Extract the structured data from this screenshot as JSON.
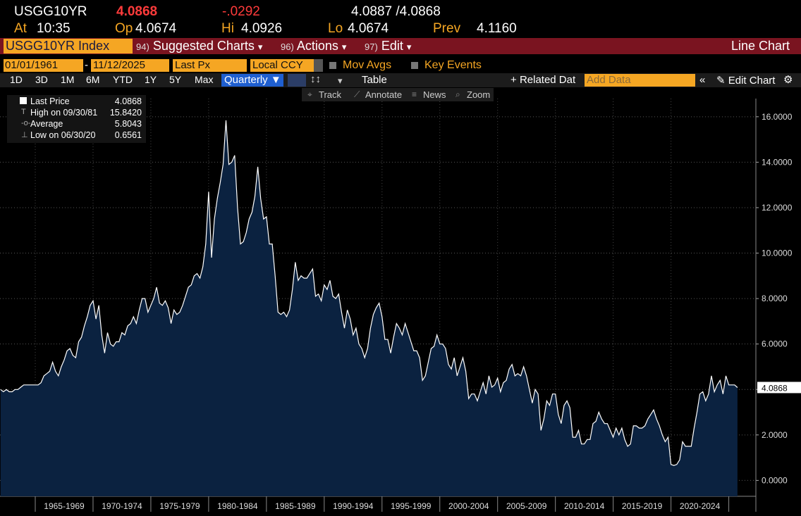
{
  "header": {
    "ticker": "USGG10YR",
    "last": "4.0868",
    "change": "-.0292",
    "bid_ask": "4.0887 /4.0868",
    "time_label": "At",
    "time": "10:35",
    "open_label": "Op",
    "open": "4.0674",
    "high_label": "Hi",
    "high": "4.0926",
    "low_label": "Lo",
    "low": "4.0674",
    "prev_label": "Prev",
    "prev": "4.1160"
  },
  "menu": {
    "security": "USGG10YR Index",
    "items": [
      {
        "num": "94)",
        "label": "Suggested Charts"
      },
      {
        "num": "96)",
        "label": "Actions"
      },
      {
        "num": "97)",
        "label": "Edit"
      }
    ],
    "chart_kind": "Line Chart"
  },
  "controls": {
    "start_date": "01/01/1961",
    "end_date": "11/12/2025",
    "field": "Last Px",
    "currency": "Local CCY",
    "checks": [
      "Mov Avgs",
      "Key Events"
    ],
    "ranges": [
      "1D",
      "3D",
      "1M",
      "6M",
      "YTD",
      "1Y",
      "5Y",
      "Max"
    ],
    "period": "Quarterly",
    "table": "Table",
    "related": "Related Dat",
    "add_data": "Add Data",
    "edit": "Edit Chart",
    "tools": [
      "Track",
      "Annotate",
      "News",
      "Zoom"
    ]
  },
  "legend": [
    {
      "label": "Last Price",
      "value": "4.0868"
    },
    {
      "label": "High on 09/30/81",
      "value": "15.8420"
    },
    {
      "label": "Average",
      "value": "5.8043"
    },
    {
      "label": "Low on 06/30/20",
      "value": "0.6561"
    }
  ],
  "chart_data": {
    "type": "area",
    "x": [
      1962,
      1962.25,
      1962.5,
      1962.75,
      1963,
      1963.25,
      1963.5,
      1963.75,
      1964,
      1964.25,
      1964.5,
      1964.75,
      1965,
      1965.25,
      1965.5,
      1965.75,
      1966,
      1966.25,
      1966.5,
      1966.75,
      1967,
      1967.25,
      1967.5,
      1967.75,
      1968,
      1968.25,
      1968.5,
      1968.75,
      1969,
      1969.25,
      1969.5,
      1969.75,
      1970,
      1970.25,
      1970.5,
      1970.75,
      1971,
      1971.25,
      1971.5,
      1971.75,
      1972,
      1972.25,
      1972.5,
      1972.75,
      1973,
      1973.25,
      1973.5,
      1973.75,
      1974,
      1974.25,
      1974.5,
      1974.75,
      1975,
      1975.25,
      1975.5,
      1975.75,
      1976,
      1976.25,
      1976.5,
      1976.75,
      1977,
      1977.25,
      1977.5,
      1977.75,
      1978,
      1978.25,
      1978.5,
      1978.75,
      1979,
      1979.25,
      1979.5,
      1979.75,
      1980,
      1980.25,
      1980.5,
      1980.75,
      1981,
      1981.25,
      1981.5,
      1981.75,
      1982,
      1982.25,
      1982.5,
      1982.75,
      1983,
      1983.25,
      1983.5,
      1983.75,
      1984,
      1984.25,
      1984.5,
      1984.75,
      1985,
      1985.25,
      1985.5,
      1985.75,
      1986,
      1986.25,
      1986.5,
      1986.75,
      1987,
      1987.25,
      1987.5,
      1987.75,
      1988,
      1988.25,
      1988.5,
      1988.75,
      1989,
      1989.25,
      1989.5,
      1989.75,
      1990,
      1990.25,
      1990.5,
      1990.75,
      1991,
      1991.25,
      1991.5,
      1991.75,
      1992,
      1992.25,
      1992.5,
      1992.75,
      1993,
      1993.25,
      1993.5,
      1993.75,
      1994,
      1994.25,
      1994.5,
      1994.75,
      1995,
      1995.25,
      1995.5,
      1995.75,
      1996,
      1996.25,
      1996.5,
      1996.75,
      1997,
      1997.25,
      1997.5,
      1997.75,
      1998,
      1998.25,
      1998.5,
      1998.75,
      1999,
      1999.25,
      1999.5,
      1999.75,
      2000,
      2000.25,
      2000.5,
      2000.75,
      2001,
      2001.25,
      2001.5,
      2001.75,
      2002,
      2002.25,
      2002.5,
      2002.75,
      2003,
      2003.25,
      2003.5,
      2003.75,
      2004,
      2004.25,
      2004.5,
      2004.75,
      2005,
      2005.25,
      2005.5,
      2005.75,
      2006,
      2006.25,
      2006.5,
      2006.75,
      2007,
      2007.25,
      2007.5,
      2007.75,
      2008,
      2008.25,
      2008.5,
      2008.75,
      2009,
      2009.25,
      2009.5,
      2009.75,
      2010,
      2010.25,
      2010.5,
      2010.75,
      2011,
      2011.25,
      2011.5,
      2011.75,
      2012,
      2012.25,
      2012.5,
      2012.75,
      2013,
      2013.25,
      2013.5,
      2013.75,
      2014,
      2014.25,
      2014.5,
      2014.75,
      2015,
      2015.25,
      2015.5,
      2015.75,
      2016,
      2016.25,
      2016.5,
      2016.75,
      2017,
      2017.25,
      2017.5,
      2017.75,
      2018,
      2018.25,
      2018.5,
      2018.75,
      2019,
      2019.25,
      2019.5,
      2019.75,
      2020,
      2020.25,
      2020.5,
      2020.75,
      2021,
      2021.25,
      2021.5,
      2021.75,
      2022,
      2022.25,
      2022.5,
      2022.75,
      2023,
      2023.25,
      2023.5,
      2023.75,
      2024,
      2024.25,
      2024.5,
      2024.75,
      2025,
      2025.25,
      2025.5,
      2025.75
    ],
    "series": [
      {
        "name": "Last Price",
        "color": "#ffffff",
        "fill": "#0b2240",
        "values": [
          4.0,
          3.9,
          4.0,
          3.9,
          3.9,
          4.0,
          4.0,
          4.1,
          4.2,
          4.2,
          4.2,
          4.2,
          4.2,
          4.2,
          4.3,
          4.6,
          4.7,
          4.8,
          5.2,
          4.8,
          4.6,
          5.0,
          5.3,
          5.7,
          5.8,
          5.5,
          5.4,
          6.1,
          6.3,
          6.8,
          7.2,
          7.7,
          7.9,
          7.1,
          7.7,
          6.4,
          5.6,
          6.5,
          6.0,
          5.9,
          6.1,
          6.1,
          6.5,
          6.4,
          6.8,
          6.9,
          7.2,
          6.9,
          7.5,
          8.0,
          8.0,
          7.4,
          7.7,
          8.0,
          8.5,
          7.8,
          7.7,
          7.9,
          7.6,
          6.9,
          7.5,
          7.3,
          7.4,
          7.7,
          8.1,
          8.5,
          8.6,
          9.0,
          9.1,
          8.9,
          9.4,
          10.4,
          12.7,
          9.8,
          11.5,
          12.4,
          13.1,
          13.9,
          15.842,
          13.9,
          14.0,
          14.3,
          12.0,
          10.4,
          10.5,
          10.9,
          11.5,
          11.8,
          12.5,
          13.8,
          12.4,
          11.5,
          11.6,
          10.4,
          10.4,
          9.0,
          7.4,
          7.3,
          7.4,
          7.2,
          7.5,
          8.4,
          9.6,
          8.8,
          9.0,
          8.9,
          8.9,
          9.1,
          9.3,
          8.1,
          8.2,
          7.9,
          8.6,
          8.4,
          8.8,
          8.1,
          8.0,
          8.2,
          7.4,
          6.7,
          7.5,
          7.1,
          6.4,
          6.7,
          6.0,
          5.8,
          5.4,
          5.8,
          6.7,
          7.3,
          7.6,
          7.8,
          7.2,
          6.2,
          6.2,
          5.6,
          6.3,
          6.9,
          6.7,
          6.4,
          6.9,
          6.5,
          6.1,
          5.7,
          5.7,
          5.4,
          4.4,
          4.6,
          5.2,
          5.8,
          5.9,
          6.4,
          6.0,
          6.0,
          5.8,
          5.1,
          4.9,
          5.4,
          4.6,
          5.0,
          5.4,
          4.8,
          3.6,
          3.8,
          3.8,
          3.5,
          3.9,
          4.3,
          3.8,
          4.6,
          4.1,
          4.2,
          4.5,
          3.9,
          4.3,
          4.4,
          4.9,
          5.1,
          4.6,
          4.7,
          4.6,
          5.0,
          4.6,
          4.0,
          3.4,
          4.0,
          3.8,
          2.2,
          2.7,
          3.5,
          3.3,
          3.8,
          3.8,
          2.9,
          2.5,
          3.3,
          3.5,
          3.2,
          1.9,
          1.9,
          2.2,
          1.6,
          1.6,
          1.8,
          1.8,
          2.5,
          2.6,
          3.0,
          2.7,
          2.5,
          2.5,
          2.2,
          1.9,
          2.3,
          2.0,
          2.3,
          1.8,
          1.5,
          1.6,
          2.4,
          2.4,
          2.3,
          2.3,
          2.4,
          2.7,
          2.9,
          3.1,
          2.7,
          2.4,
          2.0,
          1.7,
          1.9,
          0.7,
          0.6561,
          0.7,
          0.9,
          1.7,
          1.5,
          1.5,
          1.5,
          2.3,
          3.0,
          3.8,
          3.9,
          3.5,
          3.8,
          4.6,
          3.9,
          4.2,
          4.4,
          3.8,
          4.6,
          4.2,
          4.2,
          4.2,
          4.0868
        ]
      }
    ],
    "xlim": [
      1961.95,
      2027.1
    ],
    "ylim": [
      -0.7,
      16.8
    ],
    "yticks": [
      {
        "value": 0,
        "label": "0.0000"
      },
      {
        "value": 2,
        "label": "2.0000"
      },
      {
        "value": 4,
        "label": "4.0000"
      },
      {
        "value": 6,
        "label": "6.0000"
      },
      {
        "value": 8,
        "label": "8.0000"
      },
      {
        "value": 10,
        "label": "10.0000"
      },
      {
        "value": 12,
        "label": "12.0000"
      },
      {
        "value": 14,
        "label": "14.0000"
      },
      {
        "value": 16,
        "label": "16.0000"
      }
    ],
    "period_labels": [
      "1965-1969",
      "1970-1974",
      "1975-1979",
      "1980-1984",
      "1985-1989",
      "1990-1994",
      "1995-1999",
      "2000-2004",
      "2005-2009",
      "2010-2014",
      "2015-2019",
      "2020-2024"
    ],
    "grid": true
  }
}
